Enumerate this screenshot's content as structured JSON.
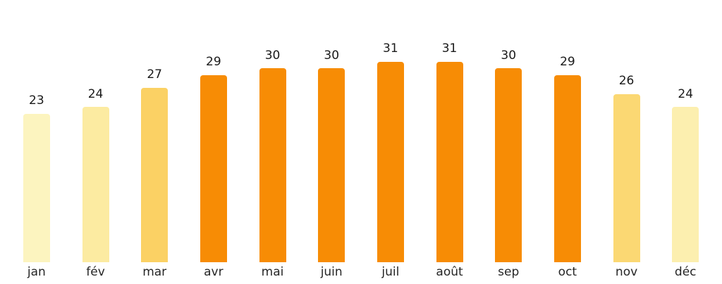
{
  "chart_data": {
    "type": "bar",
    "title": "",
    "xlabel": "",
    "ylabel": "",
    "categories": [
      "jan",
      "fév",
      "mar",
      "avr",
      "mai",
      "juin",
      "juil",
      "août",
      "sep",
      "oct",
      "nov",
      "déc"
    ],
    "values": [
      23,
      24,
      27,
      29,
      30,
      30,
      31,
      31,
      30,
      29,
      26,
      24
    ],
    "bar_colors": [
      "#FCF4BF",
      "#FCEBA1",
      "#FBD164",
      "#F78C05",
      "#F78C05",
      "#F78C05",
      "#F78C05",
      "#F78C05",
      "#F78C05",
      "#F78C05",
      "#FBD873",
      "#FCEFAF"
    ],
    "value_labels_shown": true,
    "ylim": [
      0,
      31
    ],
    "grid": false,
    "legend": "none",
    "axes_shown": false,
    "background_color": "#FFFFFF",
    "value_label_color": "#1A1A1A",
    "category_label_color": "#262626"
  }
}
